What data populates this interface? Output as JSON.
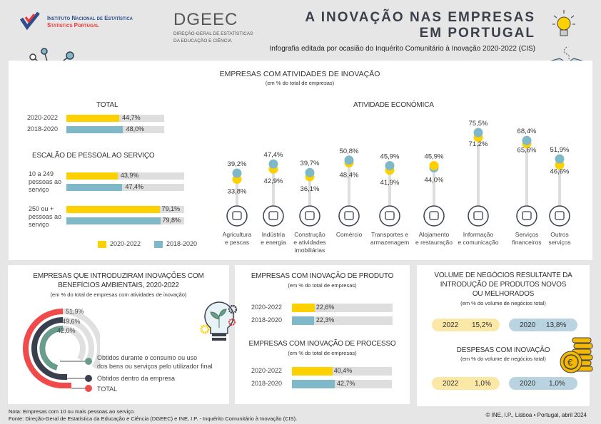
{
  "header": {
    "ine_logo_line1": "Instituto Nacional de Estatística",
    "ine_logo_line2": "Statistics Portugal",
    "dgeec_logo": "DGEEC",
    "dgeec_line1": "DIREÇÃO-GERAL DE ESTATÍSTICAS",
    "dgeec_line2": "DA EDUCAÇÃO E CIÊNCIA",
    "title_line1": "A  INOVAÇÃO NAS EMPRESAS",
    "title_line2": "EM  PORTUGAL",
    "subtitle": "Infografia editada por ocasião do Inquérito Comunitário à Inovação 2020-2022 (CIS)"
  },
  "colors": {
    "yellow": "#fdd000",
    "teal": "#7fb8c8",
    "red": "#ef4b4b",
    "dark": "#3a3f4e",
    "green": "#6a9c8e"
  },
  "main": {
    "title": "EMPRESAS COM ATIVIDADES DE INOVAÇÃO",
    "subtitle": "(em % do total de empresas)",
    "total": {
      "title": "TOTAL",
      "rows": [
        {
          "label": "2020-2022",
          "value": 44.7,
          "text": "44,7%"
        },
        {
          "label": "2018-2020",
          "value": 48.0,
          "text": "48,0%"
        }
      ]
    },
    "size": {
      "title": "ESCALÃO DE PESSOAL AO SERVIÇO",
      "groups": [
        {
          "label": "10 a 249 pessoas ao serviço",
          "rows": [
            {
              "value": 43.9,
              "text": "43,9%"
            },
            {
              "value": 47.4,
              "text": "47,4%"
            }
          ]
        },
        {
          "label": "250 ou + pessoas ao serviço",
          "rows": [
            {
              "value": 79.1,
              "text": "79,1%"
            },
            {
              "value": 79.8,
              "text": "79,8%"
            }
          ]
        }
      ]
    },
    "legend": [
      "2020-2022",
      "2018-2020"
    ],
    "activity_title": "ATIVIDADE ECONÓMICA"
  },
  "chart_data": {
    "type": "lollipop",
    "title": "ATIVIDADE ECONÓMICA",
    "categories": [
      {
        "label": "Agricultura e pescas",
        "icon": "plant-icon"
      },
      {
        "label": "Indústria e energia",
        "icon": "gears-icon"
      },
      {
        "label": "Construção e atividades imobiliárias",
        "icon": "crane-icon"
      },
      {
        "label": "Comércio",
        "icon": "cart-icon"
      },
      {
        "label": "Transportes e armazenagem",
        "icon": "bus-icon"
      },
      {
        "label": "Alojamento e restauração",
        "icon": "bed-icon"
      },
      {
        "label": "Informação e comunicação",
        "icon": "phone-icon"
      },
      {
        "label": "Serviços financeiros",
        "icon": "money-icon"
      },
      {
        "label": "Outros serviços",
        "icon": "briefcase-icon"
      }
    ],
    "series": [
      {
        "name": "2020-2022",
        "values": [
          33.8,
          42.9,
          36.1,
          48.4,
          41.9,
          45.9,
          71.2,
          65.6,
          46.6
        ],
        "labels": [
          "33,8%",
          "42,9%",
          "36,1%",
          "48,4%",
          "41,9%",
          "45,9%",
          "71,2%",
          "65,6%",
          "46,6%"
        ]
      },
      {
        "name": "2018-2020",
        "values": [
          39.2,
          47.4,
          39.7,
          50.8,
          45.9,
          44.0,
          75.5,
          68.4,
          51.9
        ],
        "labels": [
          "39,2%",
          "47,4%",
          "39,7%",
          "50,8%",
          "45,9%",
          "44,0%",
          "75,5%",
          "68,4%",
          "51,9%"
        ]
      }
    ]
  },
  "environment": {
    "title1": "EMPRESAS QUE INTRODUZIRAM INOVAÇÕES COM",
    "title2": "BENEFÍCIOS AMBIENTAIS, 2020-2022",
    "subtitle": "(em % do total de empresas com atividades de inovação)",
    "items": [
      {
        "label1": "Obtidos durante o consumo ou uso",
        "label2": "dos bens ou serviços pelo utilizador final",
        "value": 42.0,
        "text": "42,0%"
      },
      {
        "label1": "Obtidos dentro da empresa",
        "value": 49.6,
        "text": "49,6%"
      },
      {
        "label1": "TOTAL",
        "value": 51.9,
        "text": "51,9%"
      }
    ]
  },
  "product": {
    "title": "EMPRESAS COM INOVAÇÃO DE PRODUTO",
    "subtitle": "(em % do total de empresas)",
    "rows": [
      {
        "label": "2020-2022",
        "value": 22.6,
        "text": "22,6%"
      },
      {
        "label": "2018-2020",
        "value": 22.3,
        "text": "22,3%"
      }
    ]
  },
  "process": {
    "title": "EMPRESAS COM INOVAÇÃO DE PROCESSO",
    "subtitle": "(em % do total de empresas)",
    "rows": [
      {
        "label": "2020-2022",
        "value": 40.4,
        "text": "40,4%"
      },
      {
        "label": "2018-2020",
        "value": 42.7,
        "text": "42,7%"
      }
    ]
  },
  "turnover": {
    "title1": "VOLUME DE NEGÓCIOS RESULTANTE DA",
    "title2": "INTRODUÇÃO DE PRODUTOS NOVOS",
    "title3": "OU MELHORADOS",
    "subtitle": "(em % do volume de negócios total)",
    "pills": [
      {
        "year": "2022",
        "value": "15,2%"
      },
      {
        "year": "2020",
        "value": "13,8%"
      }
    ]
  },
  "spending": {
    "title": "DESPESAS COM INOVAÇÃO",
    "subtitle": "(em % do volume de negócios total)",
    "pills": [
      {
        "year": "2022",
        "value": "1,0%"
      },
      {
        "year": "2020",
        "value": "1,0%"
      }
    ]
  },
  "footer": {
    "note": "Nota: Empresas com 10 ou mais pessoas ao serviço.",
    "source": "Fonte: Direção-Geral de Estatística da Educação e Ciência (DGEEC) e INE, I.P. - Inquérito Comunitário à Inovação (CIS).",
    "copyright": "© INE, I.P., Lisboa • Portugal, abril 2024"
  }
}
